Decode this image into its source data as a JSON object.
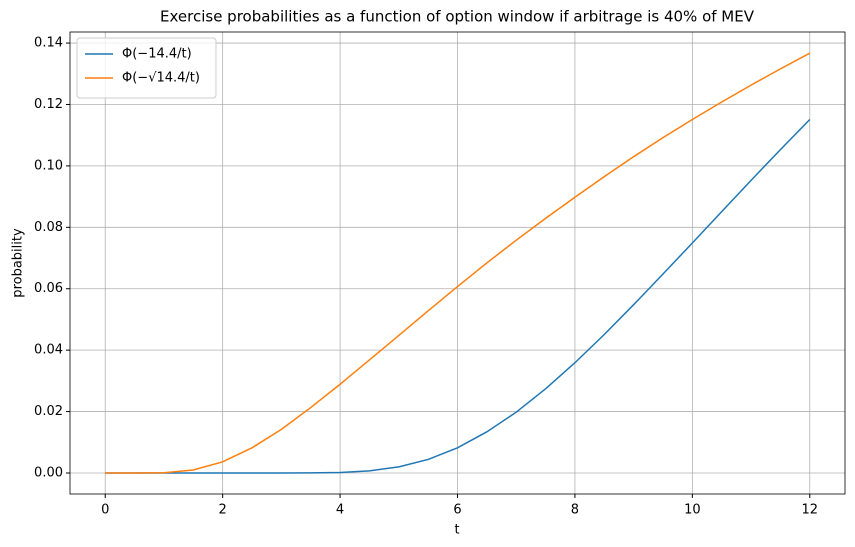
{
  "chart_data": {
    "type": "line",
    "title": "Exercise probabilities as a function of option window if arbitrage is 40% of MEV",
    "x_label": "t",
    "y_label": "probability",
    "x": [
      0,
      0.5,
      1,
      1.5,
      2,
      2.5,
      3,
      3.5,
      4,
      4.5,
      5,
      5.5,
      6,
      6.5,
      7,
      7.5,
      8,
      8.5,
      9,
      9.5,
      10,
      10.5,
      11,
      11.5,
      12
    ],
    "series": [
      {
        "name": "Φ(−14.4/t)",
        "color": "#1f77b4",
        "values": [
          0,
          0,
          0,
          0,
          0,
          0,
          0,
          2e-05,
          0.00016,
          0.00069,
          0.00199,
          0.00442,
          0.0082,
          0.0134,
          0.0198,
          0.0274,
          0.0359,
          0.0451,
          0.0548,
          0.0648,
          0.0749,
          0.0851,
          0.0953,
          0.1053,
          0.1151
        ]
      },
      {
        "name": "Φ(−√14.4/t)",
        "color": "#ff7f0e",
        "values": [
          0,
          0,
          7e-05,
          0.00097,
          0.00365,
          0.0082,
          0.0142,
          0.0213,
          0.0289,
          0.0368,
          0.0448,
          0.0528,
          0.0607,
          0.0684,
          0.0758,
          0.0829,
          0.0898,
          0.0965,
          0.103,
          0.1092,
          0.1151,
          0.1208,
          0.1263,
          0.1316,
          0.1367
        ]
      }
    ],
    "xlim": [
      -0.6,
      12.6
    ],
    "xticks": [
      0,
      2,
      4,
      6,
      8,
      10,
      12
    ],
    "ylim": [
      -0.00684,
      0.1436
    ],
    "yticks": [
      {
        "value": 0,
        "label": "0.00"
      },
      {
        "value": 0.02,
        "label": "0.02"
      },
      {
        "value": 0.04,
        "label": "0.04"
      },
      {
        "value": 0.06,
        "label": "0.06"
      },
      {
        "value": 0.08,
        "label": "0.08"
      },
      {
        "value": 0.1,
        "label": "0.10"
      },
      {
        "value": 0.12,
        "label": "0.12"
      },
      {
        "value": 0.14,
        "label": "0.14"
      }
    ],
    "grid": true,
    "legend": "upper left"
  }
}
